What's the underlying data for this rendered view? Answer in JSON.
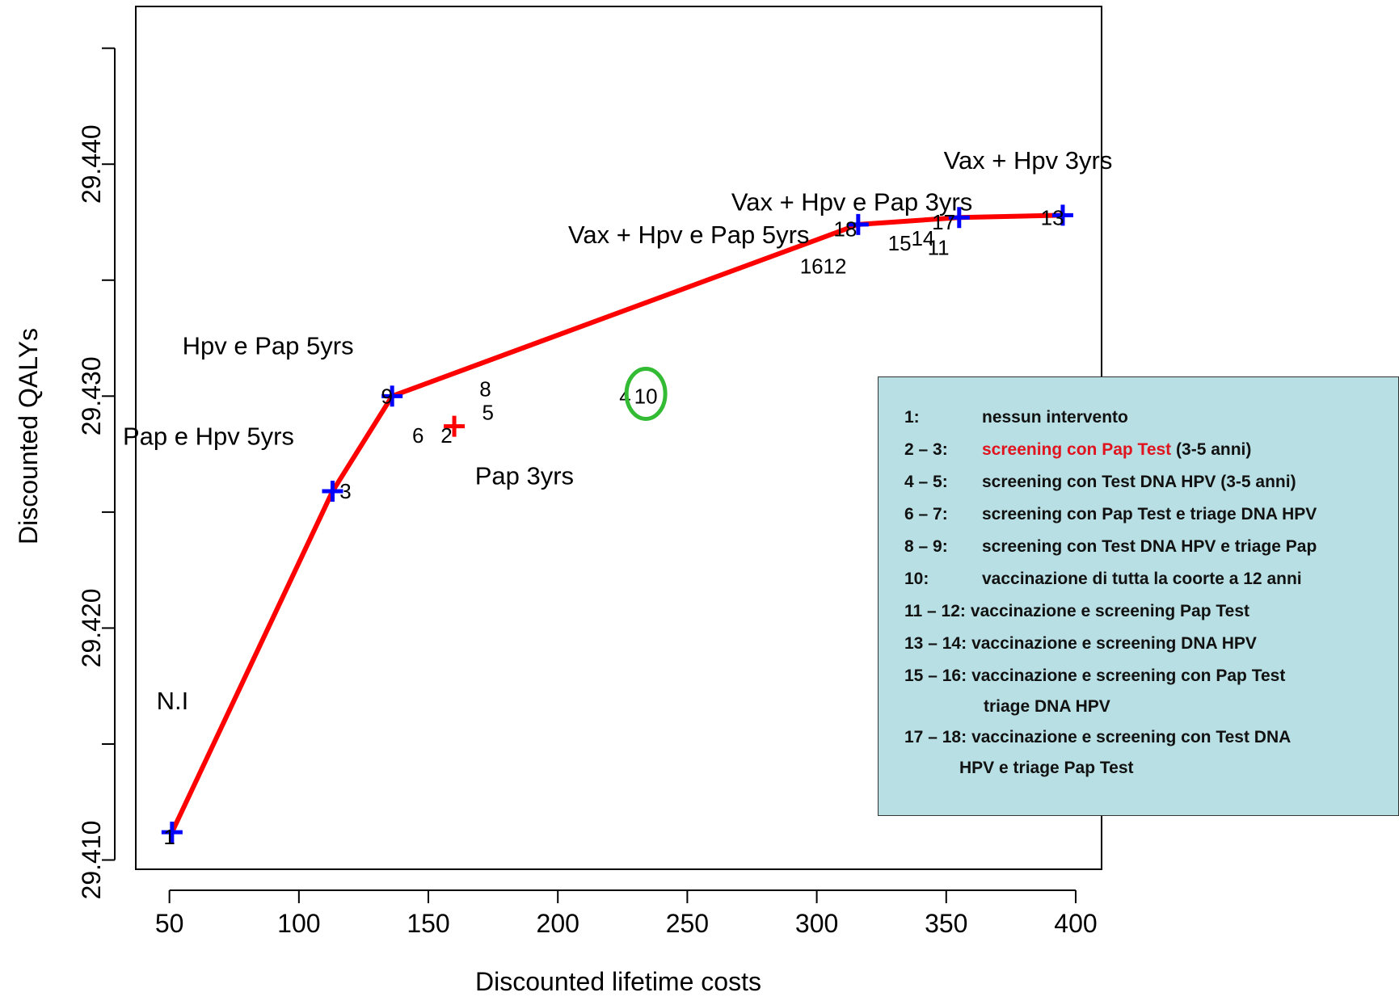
{
  "chart_data": {
    "type": "line",
    "xlabel": "Discounted lifetime costs",
    "ylabel": "Discounted QALYs",
    "xlim": [
      37,
      410
    ],
    "ylim": [
      29.4096,
      29.4468
    ],
    "x_ticks": [
      50,
      100,
      150,
      200,
      250,
      300,
      350,
      400
    ],
    "x_tick_labels": [
      "50",
      "100",
      "150",
      "200",
      "250",
      "300",
      "350",
      "400"
    ],
    "y_ticks": [
      29.41,
      29.415,
      29.42,
      29.425,
      29.43,
      29.435,
      29.44,
      29.445
    ],
    "y_tick_labels": [
      "29.410",
      "",
      "29.420",
      "",
      "29.430",
      "",
      "29.440",
      ""
    ],
    "grid": false,
    "frontier": {
      "color": "#ff0000",
      "points": [
        {
          "x": 51,
          "y": 29.4112
        },
        {
          "x": 113,
          "y": 29.4259
        },
        {
          "x": 136,
          "y": 29.43
        },
        {
          "x": 316,
          "y": 29.4374
        },
        {
          "x": 355,
          "y": 29.4377
        },
        {
          "x": 395,
          "y": 29.4378
        }
      ]
    },
    "markers": [
      {
        "x": 51,
        "y": 29.4112,
        "color": "#0000ff"
      },
      {
        "x": 113,
        "y": 29.4259,
        "color": "#0000ff"
      },
      {
        "x": 136,
        "y": 29.43,
        "color": "#0000ff"
      },
      {
        "x": 316,
        "y": 29.4374,
        "color": "#0000ff"
      },
      {
        "x": 355,
        "y": 29.4377,
        "color": "#0000ff"
      },
      {
        "x": 395,
        "y": 29.4378,
        "color": "#0000ff"
      },
      {
        "x": 160,
        "y": 29.4287,
        "color": "#ff0000"
      }
    ],
    "point_labels": [
      {
        "text": "1",
        "x": 50,
        "y": 29.411
      },
      {
        "text": "3",
        "x": 118,
        "y": 29.4259
      },
      {
        "text": "9",
        "x": 134,
        "y": 29.43
      },
      {
        "text": "6",
        "x": 146,
        "y": 29.4283
      },
      {
        "text": "2",
        "x": 157,
        "y": 29.4283
      },
      {
        "text": "8",
        "x": 172,
        "y": 29.4303
      },
      {
        "text": "5",
        "x": 173,
        "y": 29.4293
      },
      {
        "text": "4",
        "x": 226,
        "y": 29.43
      },
      {
        "text": "10",
        "x": 234,
        "y": 29.43
      },
      {
        "text": "18",
        "x": 311,
        "y": 29.4372
      },
      {
        "text": "15",
        "x": 332,
        "y": 29.4366
      },
      {
        "text": "14",
        "x": 341,
        "y": 29.4368
      },
      {
        "text": "17",
        "x": 349,
        "y": 29.4375
      },
      {
        "text": "11",
        "x": 347,
        "y": 29.4364
      },
      {
        "text": "16",
        "x": 298,
        "y": 29.4356
      },
      {
        "text": "12",
        "x": 307,
        "y": 29.4356
      },
      {
        "text": "13",
        "x": 391,
        "y": 29.4377
      }
    ],
    "annotations": [
      {
        "text": "N.I",
        "x": 45,
        "y": 29.4165
      },
      {
        "text": "Pap e Hpv 5yrs",
        "x": 32,
        "y": 29.4279
      },
      {
        "text": "Hpv e Pap 5yrs",
        "x": 55,
        "y": 29.4318
      },
      {
        "text": "Pap 3yrs",
        "x": 168,
        "y": 29.4262
      },
      {
        "text": "Vax + Hpv e Pap 5yrs",
        "x": 204,
        "y": 29.4366
      },
      {
        "text": "Vax + Hpv e Pap 3yrs",
        "x": 267,
        "y": 29.438
      },
      {
        "text": "Vax + Hpv 3yrs",
        "x": 349,
        "y": 29.4398
      }
    ],
    "highlight_circle": {
      "x": 234,
      "y": 29.4301,
      "color": "#33bb33"
    }
  },
  "legend": {
    "rows": [
      {
        "key": "1:",
        "desc": "nessun intervento"
      },
      {
        "key": "2 – 3:",
        "desc_red": "screening con Pap Test",
        "desc": " (3-5 anni)"
      },
      {
        "key": "4 – 5:",
        "desc": "screening con Test DNA HPV (3-5 anni)"
      },
      {
        "key": "6 – 7:",
        "desc": "screening con Pap Test e triage DNA HPV"
      },
      {
        "key": "8 – 9:",
        "desc": "screening con Test DNA HPV e triage Pap"
      },
      {
        "key": "10:",
        "desc": "vaccinazione di tutta la coorte a 12 anni"
      },
      {
        "key": "11 – 12:",
        "desc": "vaccinazione e  screening Pap Test"
      },
      {
        "key": "13 – 14:",
        "desc": "vaccinazione e  screening DNA HPV"
      },
      {
        "key": "15 – 16:",
        "desc": "vaccinazione e screening con Pap Test",
        "cont": "triage DNA HPV"
      },
      {
        "key": "17 – 18:",
        "desc": "vaccinazione e screening con Test DNA",
        "cont": "HPV e triage Pap Test"
      }
    ]
  }
}
